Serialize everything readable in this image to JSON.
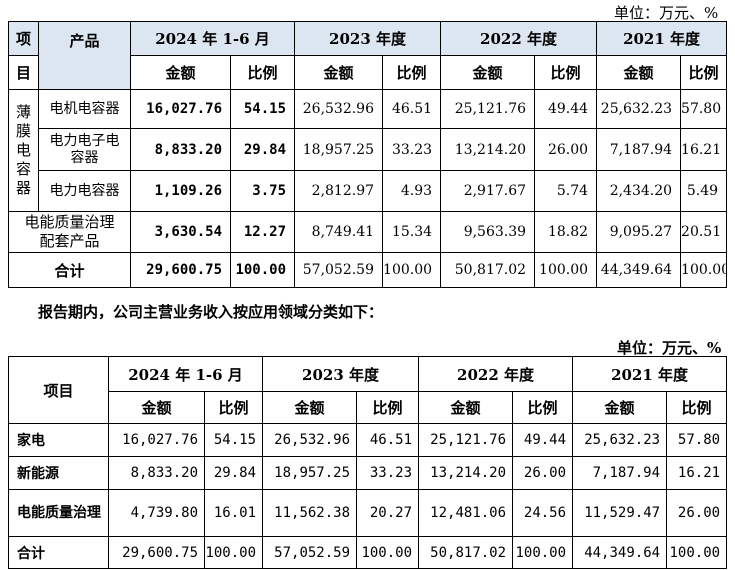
{
  "unit_top": "单位：万元、%",
  "unit_bottom": "单位：万元、%",
  "caption": "报告期内，公司主营业务收入按应用领域分类如下：",
  "table1": {
    "col_item": "项",
    "col_item_2": "目",
    "col_product": "产品",
    "periods": [
      "2024 年 1-6 月",
      "2023 年度",
      "2022 年度",
      "2021 年度"
    ],
    "amount": "金额",
    "ratio": "比例",
    "category": "薄膜电容器",
    "rows": [
      {
        "product": "电机电容器",
        "values": [
          "16,027.76",
          "54.15",
          "26,532.96",
          "46.51",
          "25,121.76",
          "49.44",
          "25,632.23",
          "57.80"
        ]
      },
      {
        "product": "电力电子电容器",
        "values": [
          "8,833.20",
          "29.84",
          "18,957.25",
          "33.23",
          "13,214.20",
          "26.00",
          "7,187.94",
          "16.21"
        ]
      },
      {
        "product": "电力电容器",
        "values": [
          "1,109.26",
          "3.75",
          "2,812.97",
          "4.93",
          "2,917.67",
          "5.74",
          "2,434.20",
          "5.49"
        ]
      },
      {
        "product": "电能质量治理配套产品",
        "values": [
          "3,630.54",
          "12.27",
          "8,749.41",
          "15.34",
          "9,563.39",
          "18.82",
          "9,095.27",
          "20.51"
        ]
      }
    ],
    "total": {
      "label": "合计",
      "values": [
        "29,600.75",
        "100.00",
        "57,052.59",
        "100.00",
        "50,817.02",
        "100.00",
        "44,349.64",
        "100.00"
      ]
    }
  },
  "table2": {
    "col_item": "项目",
    "periods": [
      "2024 年 1-6 月",
      "2023 年度",
      "2022 年度",
      "2021 年度"
    ],
    "amount": "金额",
    "ratio": "比例",
    "rows": [
      {
        "label": "家电",
        "values": [
          "16,027.76",
          "54.15",
          "26,532.96",
          "46.51",
          "25,121.76",
          "49.44",
          "25,632.23",
          "57.80"
        ]
      },
      {
        "label": "新能源",
        "values": [
          "8,833.20",
          "29.84",
          "18,957.25",
          "33.23",
          "13,214.20",
          "26.00",
          "7,187.94",
          "16.21"
        ]
      },
      {
        "label": "电能质量治理",
        "values": [
          "4,739.80",
          "16.01",
          "11,562.38",
          "20.27",
          "12,481.06",
          "24.56",
          "11,529.47",
          "26.00"
        ]
      },
      {
        "label": "合计",
        "values": [
          "29,600.75",
          "100.00",
          "57,052.59",
          "100.00",
          "50,817.02",
          "100.00",
          "44,349.64",
          "100.00"
        ]
      }
    ]
  }
}
